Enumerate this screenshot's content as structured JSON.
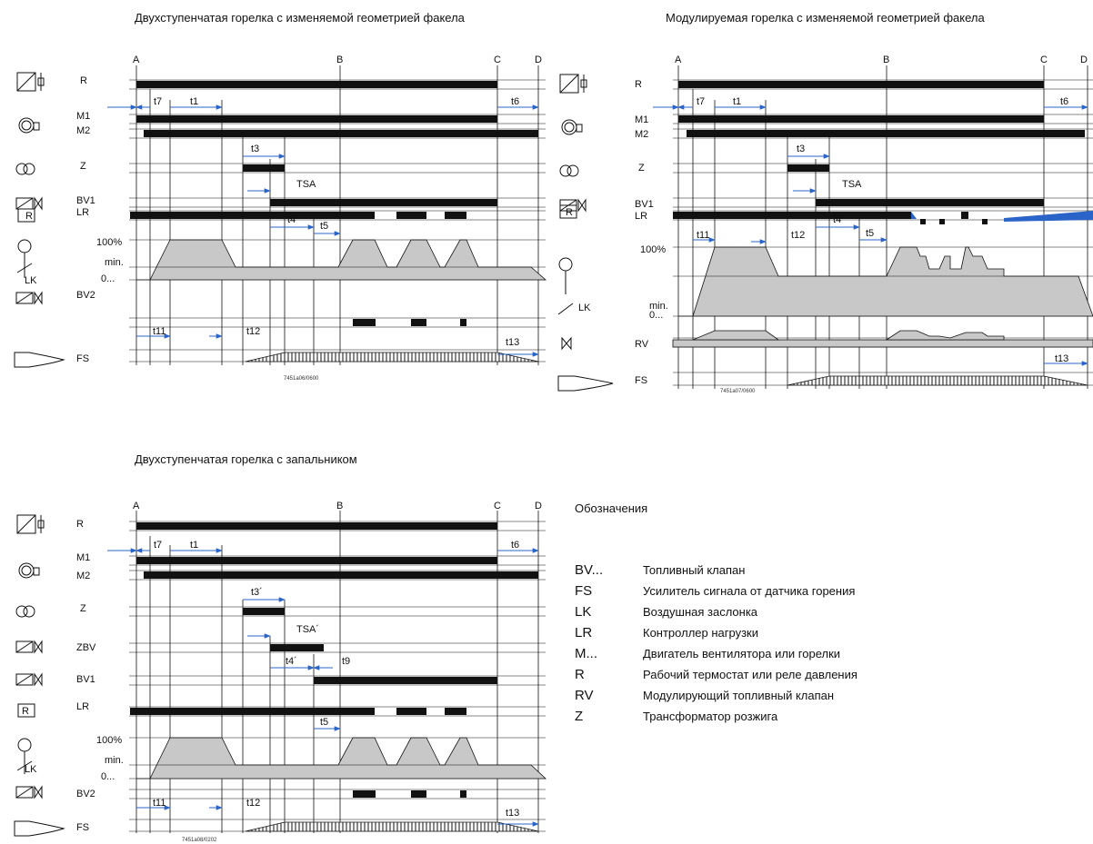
{
  "diagrams": [
    {
      "title": "Двухступенчатая горелка с изменяемой геометрией факела",
      "code": "7451a06/0600",
      "phase_labels": [
        "A",
        "B",
        "C",
        "D"
      ],
      "row_labels": [
        "R",
        "M1",
        "M2",
        "Z",
        "BV1",
        "LR",
        "100%",
        "min.",
        "0...",
        "LK",
        "BV2",
        "FS"
      ],
      "time_labels": [
        "t7",
        "t1",
        "t6",
        "t3",
        "TSA",
        "t4",
        "t5",
        "t11",
        "t12",
        "t13"
      ]
    },
    {
      "title": "Модулируемая  горелка с изменяемой геометрией факела",
      "code": "7451a07/0600",
      "phase_labels": [
        "A",
        "B",
        "C",
        "D"
      ],
      "row_labels": [
        "R",
        "M1",
        "M2",
        "Z",
        "BV1",
        "LR",
        "100%",
        "min.",
        "0...",
        "LK",
        "RV",
        "FS"
      ],
      "time_labels": [
        "t7",
        "t1",
        "t6",
        "t3",
        "TSA",
        "t4",
        "t5",
        "t11",
        "t12",
        "t13"
      ]
    },
    {
      "title": "Двухступенчатая  горелка с запальником",
      "code": "7451a08/0202",
      "phase_labels": [
        "A",
        "B",
        "C",
        "D"
      ],
      "row_labels": [
        "R",
        "M1",
        "M2",
        "Z",
        "ZBV",
        "BV1",
        "LR",
        "100%",
        "min.",
        "0...",
        "LK",
        "BV2",
        "FS"
      ],
      "time_labels": [
        "t7",
        "t1",
        "t6",
        "t3´",
        "TSA´",
        "t4´",
        "t9",
        "t5",
        "t11",
        "t12",
        "t13"
      ]
    }
  ],
  "legend": {
    "title": "Обозначения",
    "items": [
      {
        "key": "BV...",
        "desc": "Топливный клапан"
      },
      {
        "key": "FS",
        "desc": "Усилитель сигнала от датчика горения"
      },
      {
        "key": "LK",
        "desc": "Воздушная заслонка"
      },
      {
        "key": "LR",
        "desc": "Контроллер нагрузки"
      },
      {
        "key": "M...",
        "desc": "Двигатель вентилятора или горелки"
      },
      {
        "key": "R",
        "desc": "Рабочий термостат или реле давления"
      },
      {
        "key": "RV",
        "desc": "Модулирующий топливный клапан"
      },
      {
        "key": "Z",
        "desc": "Трансформатор розжига"
      }
    ]
  },
  "colors": {
    "bar": "#111111",
    "fill": "#c8c8c8",
    "accent": "#2a64c8"
  },
  "icons": [
    "thermostat-icon",
    "motor-icon",
    "transformer-icon",
    "valve-icon",
    "controller-icon",
    "damper-icon",
    "flame-sensor-icon"
  ]
}
